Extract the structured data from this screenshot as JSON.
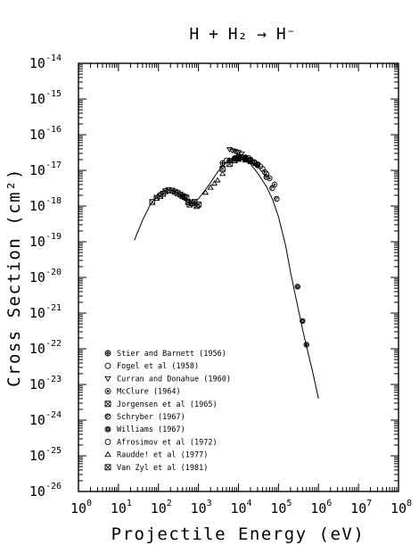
{
  "chart_data": {
    "type": "scatter",
    "title": "H + H₂ → H⁻",
    "xlabel": "Projectile Energy (eV)",
    "ylabel": "Cross Section (cm²)",
    "x_scale": "log",
    "y_scale": "log",
    "xlim": [
      1,
      100000000
    ],
    "ylim": [
      1e-26,
      1e-14
    ],
    "x_ticks": [
      "10^0",
      "10^1",
      "10^2",
      "10^3",
      "10^4",
      "10^5",
      "10^6",
      "10^7",
      "10^8"
    ],
    "y_ticks": [
      "10^-26",
      "10^-25",
      "10^-24",
      "10^-23",
      "10^-22",
      "10^-21",
      "10^-20",
      "10^-19",
      "10^-18",
      "10^-17",
      "10^-16",
      "10^-15",
      "10^-14"
    ],
    "grid": false,
    "legend_position": "bottom-left",
    "fit_curve": {
      "name": "",
      "x": [
        25,
        40,
        60,
        100,
        150,
        200,
        300,
        400,
        500,
        700,
        1000,
        1400,
        2000,
        3000,
        5000,
        7000,
        10000,
        15000,
        20000,
        30000,
        50000,
        70000,
        100000,
        150000,
        200000,
        300000,
        400000,
        500000,
        700000,
        1000000
      ],
      "y": [
        1.1e-19,
        4e-19,
        1e-18,
        2.3e-18,
        2.8e-18,
        2.8e-18,
        2.3e-18,
        1.7e-18,
        1.35e-18,
        1.2e-18,
        1.6e-18,
        2.6e-18,
        4.5e-18,
        9e-18,
        1.7e-17,
        2.1e-17,
        2.2e-17,
        1.9e-17,
        1.5e-17,
        8.5e-18,
        3.5e-18,
        1.6e-18,
        5e-19,
        8e-20,
        1.4e-20,
        1.6e-21,
        3.5e-22,
        1.2e-22,
        2.5e-23,
        4e-24
      ]
    },
    "series": [
      {
        "name": "Stier and Barnett (1956)",
        "marker": "cross-circle",
        "x": [
          4000,
          6000,
          8000,
          10000,
          12000,
          15000,
          20000,
          25000,
          30000
        ],
        "y": [
          1.6e-17,
          1.9e-17,
          2.1e-17,
          2.2e-17,
          2.3e-17,
          2.1e-17,
          1.9e-17,
          1.6e-17,
          1.4e-17
        ]
      },
      {
        "name": "Fogel et al (1958)",
        "marker": "circle",
        "x": [
          5000,
          10000,
          15000,
          20000,
          30000,
          40000
        ],
        "y": [
          1.9e-17,
          2.5e-17,
          2.3e-17,
          2e-17,
          1.5e-17,
          1.1e-17
        ]
      },
      {
        "name": "Curran and Donahue (1960)",
        "marker": "triangle-down",
        "x": [
          6000,
          7000,
          8000,
          9000,
          10000,
          12000
        ],
        "y": [
          3.9e-17,
          3.6e-17,
          3.5e-17,
          3.3e-17,
          3.2e-17,
          2.9e-17
        ]
      },
      {
        "name": "McClure (1964)",
        "marker": "dot-circle",
        "x": [
          8000,
          10000,
          15000,
          20000,
          30000,
          45000,
          60000,
          80000
        ],
        "y": [
          2.2e-17,
          2.4e-17,
          2.2e-17,
          1.9e-17,
          1.4e-17,
          9e-18,
          6e-18,
          4e-18
        ]
      },
      {
        "name": "Jorgensen et al (1965)",
        "marker": "box-x",
        "x": [
          4000,
          6000,
          8000,
          10000,
          15000,
          20000
        ],
        "y": [
          1.1e-17,
          1.5e-17,
          1.9e-17,
          2.1e-17,
          2e-17,
          1.8e-17
        ]
      },
      {
        "name": "Schryber (1967)",
        "marker": "hatched-circle",
        "x": [
          50000,
          70000,
          90000
        ],
        "y": [
          6.5e-18,
          3.2e-18,
          1.6e-18
        ]
      },
      {
        "name": "Williams (1967)",
        "marker": "gear-circle",
        "x": [
          300000,
          400000,
          500000
        ],
        "y": [
          5.5e-21,
          6e-22,
          1.3e-22
        ]
      },
      {
        "name": "Afrosimov et al (1972)",
        "marker": "circle",
        "x": [
          12000,
          18000,
          25000,
          35000,
          50000
        ],
        "y": [
          2.4e-17,
          2.2e-17,
          1.7e-17,
          1.3e-17,
          8e-18
        ]
      },
      {
        "name": "Raudde! et al (1977)",
        "marker": "triangle-up",
        "x": [
          1500,
          2000,
          2500,
          3000,
          4000
        ],
        "y": [
          2.4e-18,
          3.3e-18,
          4.3e-18,
          5.3e-18,
          8e-18
        ]
      },
      {
        "name": "Van Zyl et al (1981)",
        "marker": "box-x",
        "x": [
          70,
          90,
          110,
          130,
          150,
          180,
          220,
          260,
          300,
          350,
          400,
          450,
          500,
          550,
          600,
          700,
          800,
          900,
          1000
        ],
        "y": [
          1.3e-18,
          1.7e-18,
          1.9e-18,
          2.2e-18,
          2.6e-18,
          2.8e-18,
          2.7e-18,
          2.5e-18,
          2.3e-18,
          2.1e-18,
          1.9e-18,
          1.8e-18,
          1.7e-18,
          1.3e-18,
          1.1e-18,
          1.2e-18,
          1.3e-18,
          1e-18,
          1.1e-18
        ]
      }
    ]
  }
}
